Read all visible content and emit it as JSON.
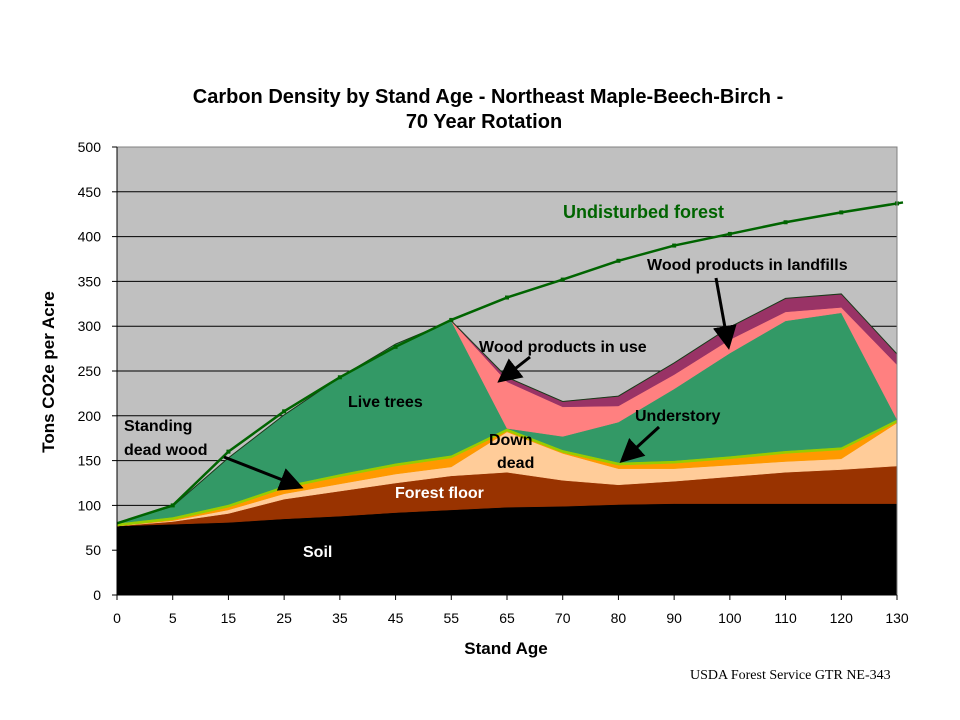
{
  "chart_data": {
    "type": "area",
    "title": [
      "Carbon Density by Stand Age - Northeast Maple-Beech-Birch -",
      "70 Year Rotation"
    ],
    "xlabel": "Stand Age",
    "ylabel": "Tons CO2e per Acre",
    "x": [
      0,
      5,
      15,
      25,
      35,
      45,
      55,
      65,
      70,
      80,
      90,
      100,
      110,
      120,
      130
    ],
    "ylim": [
      0,
      500
    ],
    "yticks": [
      0,
      50,
      100,
      150,
      200,
      250,
      300,
      350,
      400,
      450,
      500
    ],
    "xtick_labels": [
      "0",
      "5",
      "15",
      "25",
      "35",
      "45",
      "55",
      "65",
      "70",
      "80",
      "90",
      "100",
      "110",
      "120",
      "130"
    ],
    "grid": true,
    "series": [
      {
        "name": "Soil",
        "color": "#000000",
        "values": [
          77,
          79,
          81,
          85,
          88,
          92,
          95,
          98,
          99,
          101,
          102,
          102,
          102,
          102,
          102
        ]
      },
      {
        "name": "Forest floor",
        "color": "#993300",
        "values": [
          0,
          3,
          10,
          22,
          28,
          33,
          38,
          39,
          29,
          22,
          25,
          30,
          35,
          38,
          42
        ]
      },
      {
        "name": "Down dead",
        "color": "#FFCC99",
        "values": [
          0,
          1,
          4,
          6,
          8,
          10,
          10,
          45,
          30,
          18,
          14,
          13,
          12,
          12,
          48
        ]
      },
      {
        "name": "Standing dead wood",
        "color": "#FF9900",
        "values": [
          0,
          1,
          3,
          6,
          8,
          9,
          10,
          1,
          1,
          4,
          6,
          7,
          9,
          10,
          1
        ]
      },
      {
        "name": "Understory",
        "color": "#99CC00",
        "values": [
          3,
          3,
          3,
          3,
          3,
          3,
          3,
          3,
          3,
          3,
          3,
          3,
          3,
          3,
          3
        ]
      },
      {
        "name": "Live trees",
        "color": "#339966",
        "values": [
          0,
          12,
          52,
          79,
          108,
          133,
          150,
          0,
          15,
          45,
          80,
          115,
          145,
          150,
          0
        ]
      },
      {
        "name": "Wood products in use",
        "color": "#FF8080",
        "values": [
          0,
          0,
          0,
          0,
          0,
          0,
          0,
          52,
          33,
          18,
          16,
          15,
          10,
          6,
          61
        ]
      },
      {
        "name": "Wood products in landfills",
        "color": "#993366",
        "values": [
          0,
          0,
          0,
          0,
          0,
          0,
          0,
          5,
          6,
          11,
          13,
          14,
          15,
          15,
          12
        ]
      },
      {
        "name": "Undisturbed forest",
        "color": "#006400",
        "type": "line",
        "values": [
          80,
          100,
          160,
          205,
          243,
          277,
          307,
          332,
          352,
          373,
          390,
          403,
          416,
          427,
          437
        ]
      }
    ],
    "annotations": [
      {
        "text": "Undisturbed forest",
        "color": "#006400"
      },
      {
        "text": "Wood products in landfills",
        "color": "#000000"
      },
      {
        "text": "Wood products in use",
        "color": "#000000"
      },
      {
        "text": "Live trees",
        "color": "#000000"
      },
      {
        "text": "Understory",
        "color": "#000000"
      },
      {
        "text": "Standing",
        "color": "#000000"
      },
      {
        "text": "dead wood",
        "color": "#000000"
      },
      {
        "text": "Down",
        "color": "#000000"
      },
      {
        "text": "dead",
        "color": "#000000"
      },
      {
        "text": "Forest floor",
        "color": "#ffffff"
      },
      {
        "text": "Soil",
        "color": "#ffffff"
      }
    ],
    "plot_background": "#C0C0C0"
  },
  "source": "USDA Forest Service GTR NE-343"
}
